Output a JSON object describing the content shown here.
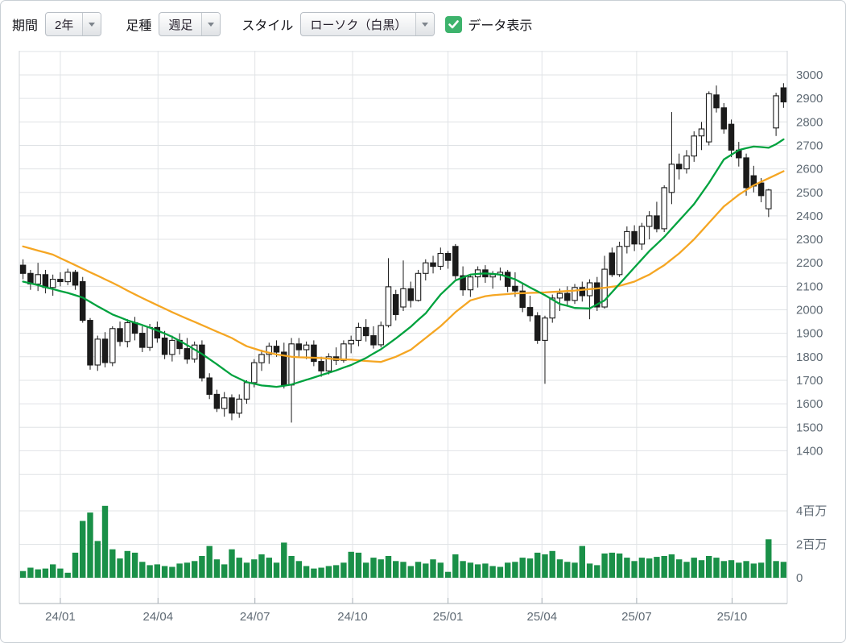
{
  "toolbar": {
    "period": {
      "label": "期間",
      "value": "2年"
    },
    "bar_type": {
      "label": "足種",
      "value": "週足"
    },
    "style": {
      "label": "スタイル",
      "value": "ローソク（白黒）"
    },
    "data_display": {
      "label": "データ表示",
      "checked": true
    }
  },
  "colors": {
    "candle_up_fill": "#ffffff",
    "candle_down_fill": "#1b1b1b",
    "candle_outline": "#1b1b1b",
    "ma_short": "#00a23e",
    "ma_long": "#f5a623",
    "volume": "#1a9048",
    "grid": "#e0e3e6",
    "boundary": "#d2d6da",
    "axis_line": "#a8b0b7",
    "axis_text": "#5f6a74",
    "checkbox": "#3db36c"
  },
  "chart_data": {
    "type": "candlestick",
    "description": "2-year weekly candlestick stock chart with short/long moving averages and volume bars",
    "price_axis": {
      "label_min": 1400,
      "label_max": 3000,
      "step": 100,
      "grid_min": 1300,
      "grid_max": 3100
    },
    "volume_axis": {
      "tick_values_millions": [
        0,
        2,
        4
      ],
      "tick_labels": [
        "0",
        "2百万",
        "4百万"
      ]
    },
    "x_ticks": [
      {
        "week": 5.0,
        "label": "24/01"
      },
      {
        "week": 18.1,
        "label": "24/04"
      },
      {
        "week": 31.1,
        "label": "24/07"
      },
      {
        "week": 44.2,
        "label": "24/10"
      },
      {
        "week": 57.0,
        "label": "25/01"
      },
      {
        "week": 69.6,
        "label": "25/04"
      },
      {
        "week": 82.3,
        "label": "25/07"
      },
      {
        "week": 95.1,
        "label": "25/10"
      }
    ],
    "candles_format": [
      "open",
      "high",
      "low",
      "close",
      "volume_millions"
    ],
    "candles": [
      [
        2190,
        2215,
        2130,
        2155,
        0.4
      ],
      [
        2155,
        2170,
        2085,
        2110,
        0.6
      ],
      [
        2110,
        2200,
        2080,
        2150,
        0.5
      ],
      [
        2150,
        2170,
        2070,
        2095,
        0.55
      ],
      [
        2095,
        2150,
        2060,
        2130,
        0.8
      ],
      [
        2130,
        2160,
        2100,
        2120,
        0.55
      ],
      [
        2120,
        2175,
        2105,
        2160,
        0.3
      ],
      [
        2160,
        2170,
        2085,
        2105,
        1.5
      ],
      [
        2120,
        2140,
        1945,
        1955,
        3.4
      ],
      [
        1955,
        1965,
        1745,
        1765,
        3.9
      ],
      [
        1765,
        1890,
        1740,
        1875,
        2.2
      ],
      [
        1875,
        1905,
        1755,
        1775,
        4.3
      ],
      [
        1775,
        1930,
        1760,
        1920,
        1.7
      ],
      [
        1920,
        1950,
        1845,
        1865,
        1.15
      ],
      [
        1865,
        1960,
        1840,
        1945,
        1.6
      ],
      [
        1945,
        1970,
        1870,
        1900,
        1.5
      ],
      [
        1900,
        1930,
        1820,
        1840,
        0.95
      ],
      [
        1840,
        1940,
        1825,
        1925,
        0.75
      ],
      [
        1925,
        1950,
        1860,
        1880,
        0.8
      ],
      [
        1880,
        1910,
        1790,
        1810,
        0.7
      ],
      [
        1810,
        1890,
        1780,
        1870,
        0.65
      ],
      [
        1870,
        1900,
        1810,
        1835,
        0.85
      ],
      [
        1835,
        1880,
        1770,
        1790,
        0.9
      ],
      [
        1790,
        1865,
        1775,
        1850,
        1.0
      ],
      [
        1850,
        1870,
        1695,
        1710,
        1.3
      ],
      [
        1710,
        1730,
        1620,
        1640,
        1.9
      ],
      [
        1640,
        1660,
        1565,
        1580,
        1.1
      ],
      [
        1580,
        1650,
        1545,
        1625,
        0.8
      ],
      [
        1625,
        1640,
        1530,
        1560,
        1.7
      ],
      [
        1560,
        1640,
        1540,
        1620,
        1.2
      ],
      [
        1620,
        1700,
        1600,
        1690,
        0.9
      ],
      [
        1690,
        1790,
        1670,
        1775,
        1.1
      ],
      [
        1775,
        1830,
        1740,
        1810,
        1.4
      ],
      [
        1810,
        1860,
        1770,
        1845,
        1.2
      ],
      [
        1845,
        1870,
        1800,
        1820,
        0.9
      ],
      [
        1820,
        1860,
        1665,
        1680,
        2.1
      ],
      [
        1680,
        1880,
        1520,
        1855,
        1.3
      ],
      [
        1855,
        1880,
        1800,
        1830,
        1.0
      ],
      [
        1830,
        1865,
        1790,
        1850,
        0.7
      ],
      [
        1850,
        1870,
        1760,
        1780,
        0.55
      ],
      [
        1780,
        1800,
        1715,
        1740,
        0.6
      ],
      [
        1740,
        1815,
        1725,
        1800,
        0.7
      ],
      [
        1800,
        1840,
        1765,
        1785,
        0.75
      ],
      [
        1785,
        1870,
        1775,
        1855,
        0.9
      ],
      [
        1855,
        1890,
        1815,
        1870,
        1.55
      ],
      [
        1870,
        1945,
        1845,
        1925,
        1.5
      ],
      [
        1925,
        1960,
        1865,
        1890,
        0.9
      ],
      [
        1890,
        1930,
        1835,
        1851,
        1.2
      ],
      [
        1851,
        1950,
        1840,
        1933,
        1.1
      ],
      [
        1933,
        2220,
        1925,
        2098,
        1.3
      ],
      [
        2065,
        2085,
        1955,
        1980,
        1.0
      ],
      [
        2012,
        2210,
        1995,
        2090,
        0.95
      ],
      [
        2090,
        2120,
        2010,
        2040,
        0.7
      ],
      [
        2040,
        2170,
        2035,
        2155,
        0.95
      ],
      [
        2155,
        2215,
        2125,
        2200,
        0.85
      ],
      [
        2200,
        2230,
        2155,
        2185,
        1.1
      ],
      [
        2185,
        2265,
        2170,
        2240,
        0.9
      ],
      [
        2240,
        2250,
        2175,
        2210,
        0.35
      ],
      [
        2270,
        2280,
        2130,
        2145,
        1.4
      ],
      [
        2145,
        2185,
        2060,
        2085,
        1.0
      ],
      [
        2085,
        2150,
        2055,
        2140,
        0.9
      ],
      [
        2140,
        2185,
        2095,
        2170,
        0.8
      ],
      [
        2170,
        2190,
        2115,
        2140,
        0.85
      ],
      [
        2140,
        2165,
        2090,
        2150,
        0.7
      ],
      [
        2150,
        2180,
        2125,
        2160,
        0.65
      ],
      [
        2160,
        2170,
        2075,
        2100,
        0.9
      ],
      [
        2100,
        2160,
        2055,
        2080,
        0.95
      ],
      [
        2080,
        2110,
        1990,
        2010,
        1.2
      ],
      [
        2010,
        2060,
        1950,
        1975,
        1.15
      ],
      [
        1975,
        1990,
        1855,
        1870,
        1.5
      ],
      [
        1870,
        1975,
        1685,
        1965,
        1.4
      ],
      [
        1965,
        2065,
        1945,
        2050,
        1.6
      ],
      [
        2050,
        2090,
        1995,
        2070,
        1.1
      ],
      [
        2070,
        2100,
        2015,
        2040,
        0.95
      ],
      [
        2040,
        2110,
        2025,
        2095,
        0.9
      ],
      [
        2095,
        2120,
        2035,
        2060,
        1.9
      ],
      [
        2060,
        2130,
        1960,
        2115,
        0.85
      ],
      [
        2115,
        2140,
        1995,
        2012,
        0.75
      ],
      [
        2012,
        2230,
        2005,
        2173,
        1.45
      ],
      [
        2242,
        2265,
        2140,
        2150,
        1.5
      ],
      [
        2150,
        2290,
        2140,
        2270,
        1.45
      ],
      [
        2270,
        2355,
        2240,
        2333,
        1.2
      ],
      [
        2333,
        2360,
        2250,
        2280,
        1.0
      ],
      [
        2280,
        2370,
        2255,
        2355,
        1.2
      ],
      [
        2355,
        2420,
        2300,
        2400,
        1.15
      ],
      [
        2400,
        2460,
        2330,
        2345,
        1.25
      ],
      [
        2345,
        2530,
        2331,
        2520,
        1.3
      ],
      [
        2500,
        2842,
        2450,
        2620,
        1.4
      ],
      [
        2620,
        2665,
        2555,
        2600,
        1.1
      ],
      [
        2600,
        2680,
        2580,
        2655,
        0.95
      ],
      [
        2655,
        2760,
        2630,
        2740,
        1.2
      ],
      [
        2740,
        2800,
        2680,
        2770,
        1.05
      ],
      [
        2715,
        2930,
        2700,
        2920,
        1.3
      ],
      [
        2915,
        2955,
        2840,
        2860,
        1.2
      ],
      [
        2860,
        2880,
        2750,
        2770,
        1.0
      ],
      [
        2790,
        2810,
        2650,
        2680,
        1.05
      ],
      [
        2680,
        2715,
        2610,
        2647,
        0.9
      ],
      [
        2647,
        2665,
        2486,
        2520,
        1.0
      ],
      [
        2571,
        2613,
        2500,
        2527,
        0.85
      ],
      [
        2540,
        2561,
        2458,
        2486,
        0.9
      ],
      [
        2430,
        2515,
        2395,
        2510,
        2.3
      ],
      [
        2774,
        2924,
        2740,
        2911,
        1.0
      ],
      [
        2945,
        2965,
        2860,
        2885,
        0.95
      ]
    ],
    "ma_short": [
      2120,
      2113,
      2105,
      2096,
      2088,
      2080,
      2072,
      2062,
      2052,
      2034,
      2015,
      1998,
      1980,
      1968,
      1955,
      1945,
      1935,
      1924,
      1912,
      1899,
      1885,
      1868,
      1850,
      1831,
      1812,
      1790,
      1768,
      1745,
      1722,
      1707,
      1692,
      1685,
      1678,
      1675,
      1672,
      1677,
      1682,
      1692,
      1702,
      1712,
      1722,
      1732,
      1742,
      1754,
      1765,
      1780,
      1795,
      1814,
      1832,
      1855,
      1878,
      1903,
      1928,
      1957,
      1985,
      2025,
      2065,
      2095,
      2125,
      2138,
      2150,
      2153,
      2155,
      2153,
      2150,
      2140,
      2130,
      2113,
      2095,
      2079,
      2062,
      2044,
      2025,
      2017,
      2008,
      2007,
      2006,
      2023,
      2040,
      2075,
      2110,
      2145,
      2180,
      2215,
      2250,
      2280,
      2310,
      2345,
      2380,
      2415,
      2450,
      2495,
      2540,
      2590,
      2640,
      2660,
      2680,
      2688,
      2695,
      2693,
      2690,
      2705,
      2726
    ],
    "ma_long": [
      2270,
      2261,
      2252,
      2244,
      2235,
      2220,
      2205,
      2190,
      2175,
      2160,
      2145,
      2130,
      2115,
      2099,
      2082,
      2066,
      2050,
      2035,
      2020,
      2005,
      1990,
      1976,
      1962,
      1949,
      1935,
      1921,
      1907,
      1894,
      1880,
      1862,
      1845,
      1835,
      1825,
      1817,
      1810,
      1805,
      1800,
      1798,
      1797,
      1796,
      1795,
      1792,
      1790,
      1789,
      1788,
      1785,
      1782,
      1780,
      1778,
      1789,
      1800,
      1815,
      1830,
      1855,
      1880,
      1905,
      1930,
      1960,
      1990,
      2015,
      2040,
      2049,
      2058,
      2062,
      2065,
      2067,
      2070,
      2071,
      2072,
      2073,
      2074,
      2076,
      2078,
      2080,
      2082,
      2085,
      2088,
      2091,
      2094,
      2098,
      2102,
      2111,
      2120,
      2135,
      2150,
      2170,
      2190,
      2215,
      2240,
      2270,
      2300,
      2335,
      2370,
      2405,
      2440,
      2465,
      2490,
      2510,
      2530,
      2545,
      2560,
      2575,
      2590
    ]
  }
}
